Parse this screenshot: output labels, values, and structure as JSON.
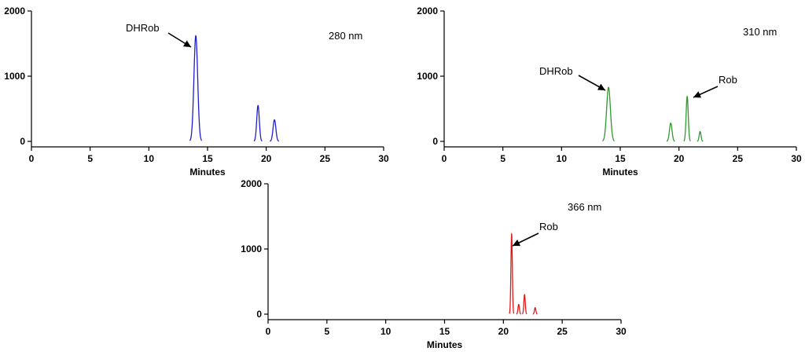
{
  "chart_data": [
    {
      "type": "line",
      "color": "#1f1fd0",
      "xlabel": "Minutes",
      "ylabel": "",
      "xlim": [
        0,
        30
      ],
      "ylim": [
        0,
        2000
      ],
      "xticks": [
        "0",
        "5",
        "10",
        "15",
        "20",
        "25",
        "30"
      ],
      "yticks": [
        "0",
        "1000",
        "2000"
      ],
      "wavelength_label": "280 nm",
      "peaks": [
        {
          "center": 14.0,
          "height": 1620,
          "width": 0.16,
          "label": "DHRob"
        },
        {
          "center": 19.3,
          "height": 550,
          "width": 0.11,
          "label": ""
        },
        {
          "center": 20.7,
          "height": 330,
          "width": 0.12,
          "label": ""
        }
      ]
    },
    {
      "type": "line",
      "color": "#2e9a2e",
      "xlabel": "Minutes",
      "ylabel": "",
      "xlim": [
        0,
        30
      ],
      "ylim": [
        0,
        2000
      ],
      "xticks": [
        "0",
        "5",
        "10",
        "15",
        "20",
        "25",
        "30"
      ],
      "yticks": [
        "0",
        "1000",
        "2000"
      ],
      "wavelength_label": "310 nm",
      "peaks": [
        {
          "center": 14.0,
          "height": 830,
          "width": 0.16,
          "label": "DHRob"
        },
        {
          "center": 19.3,
          "height": 280,
          "width": 0.11,
          "label": ""
        },
        {
          "center": 20.7,
          "height": 690,
          "width": 0.09,
          "label": "Rob"
        },
        {
          "center": 21.8,
          "height": 150,
          "width": 0.08,
          "label": ""
        }
      ]
    },
    {
      "type": "line",
      "color": "#e01a1a",
      "xlabel": "Minutes",
      "ylabel": "",
      "xlim": [
        0,
        30
      ],
      "ylim": [
        0,
        2000
      ],
      "xticks": [
        "0",
        "5",
        "10",
        "15",
        "20",
        "25",
        "30"
      ],
      "yticks": [
        "0",
        "1000",
        "2000"
      ],
      "wavelength_label": "366 nm",
      "peaks": [
        {
          "center": 20.7,
          "height": 1230,
          "width": 0.06,
          "label": "Rob"
        },
        {
          "center": 21.3,
          "height": 150,
          "width": 0.06,
          "label": ""
        },
        {
          "center": 21.8,
          "height": 300,
          "width": 0.06,
          "label": ""
        },
        {
          "center": 22.7,
          "height": 100,
          "width": 0.06,
          "label": ""
        }
      ]
    }
  ]
}
